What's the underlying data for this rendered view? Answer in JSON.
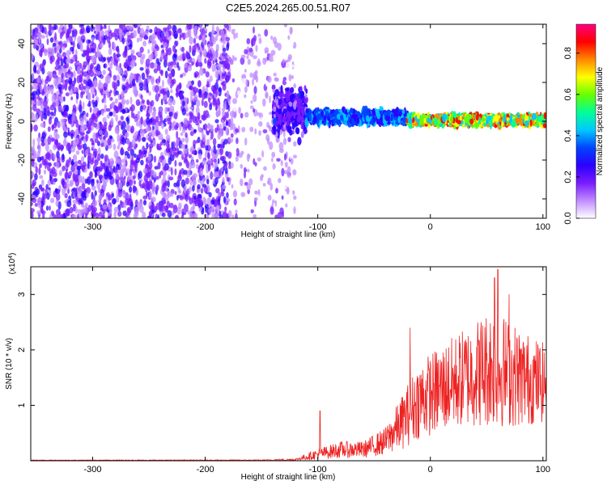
{
  "title": "C2E5.2024.265.00.51.R07",
  "chart_data": [
    {
      "type": "heatmap",
      "xlabel": "Height of straight line (km)",
      "ylabel": "Frequency (Hz)",
      "xlim": [
        -355,
        103
      ],
      "ylim": [
        -50,
        50
      ],
      "xticks": [
        -300,
        -200,
        -100,
        0,
        100
      ],
      "yticks": [
        -40,
        -20,
        0,
        20,
        40
      ],
      "colorbar": {
        "label": "Normalized spectral amplitude",
        "range": [
          0.0,
          0.94
        ],
        "ticks": [
          "0.0",
          "0.2",
          "0.4",
          "0.6",
          "0.8"
        ],
        "tick_values": [
          0.0,
          0.2,
          0.4,
          0.6,
          0.8
        ],
        "colors": [
          "#ffffff",
          "#c08cff",
          "#7a1cff",
          "#2b00ff",
          "#0044ff",
          "#00c8ff",
          "#00ff99",
          "#66ff00",
          "#ffff00",
          "#ff8800",
          "#ff0000",
          "#ff0080"
        ]
      },
      "regions": [
        {
          "x": [
            -355,
            -178
          ],
          "freq_range": [
            -50,
            50
          ],
          "amplitude": "0.05-0.25 (noise)"
        },
        {
          "x": [
            -178,
            -120
          ],
          "freq_range": [
            -50,
            50
          ],
          "amplitude": "0.02-0.15 (sparse noise)"
        },
        {
          "x": [
            -140,
            -110
          ],
          "freq_center": 5,
          "freq_halfwidth": 15,
          "amplitude": "0.1-0.3"
        },
        {
          "x": [
            -110,
            -20
          ],
          "freq_center": 2,
          "freq_halfwidth": 4,
          "amplitude": "0.25-0.45"
        },
        {
          "x": [
            -20,
            103
          ],
          "freq_center": 0.5,
          "freq_halfwidth": 3,
          "amplitude": "0.4-0.9"
        }
      ]
    },
    {
      "type": "line",
      "xlabel": "Height of straight line (km)",
      "ylabel": "SNR (10 * v/v)",
      "y_multiplier": "(x10",
      "y_multiplier_exp": "4",
      "y_multiplier_close": ")",
      "xlim": [
        -355,
        103
      ],
      "ylim": [
        0,
        3.5
      ],
      "xticks": [
        -300,
        -200,
        -100,
        0,
        100
      ],
      "yticks": [
        1,
        2,
        3
      ],
      "series": [
        {
          "color": "#ee2222",
          "envelope": [
            {
              "x": -355,
              "mean": 0.01,
              "spread": 0.005
            },
            {
              "x": -150,
              "mean": 0.01,
              "spread": 0.008
            },
            {
              "x": -120,
              "mean": 0.02,
              "spread": 0.02
            },
            {
              "x": -100,
              "mean": 0.12,
              "spread": 0.1
            },
            {
              "x": -80,
              "mean": 0.2,
              "spread": 0.15
            },
            {
              "x": -60,
              "mean": 0.2,
              "spread": 0.15
            },
            {
              "x": -40,
              "mean": 0.35,
              "spread": 0.25
            },
            {
              "x": -25,
              "mean": 0.7,
              "spread": 0.5
            },
            {
              "x": -10,
              "mean": 1.1,
              "spread": 0.7
            },
            {
              "x": 10,
              "mean": 1.3,
              "spread": 0.8
            },
            {
              "x": 30,
              "mean": 1.5,
              "spread": 0.9
            },
            {
              "x": 55,
              "mean": 1.7,
              "spread": 1.1
            },
            {
              "x": 80,
              "mean": 1.5,
              "spread": 0.9
            },
            {
              "x": 103,
              "mean": 1.4,
              "spread": 0.7
            }
          ],
          "peaks": [
            {
              "x": -98,
              "value": 0.9
            },
            {
              "x": -18,
              "value": 2.4
            },
            {
              "x": 57,
              "value": 3.3
            },
            {
              "x": 60,
              "value": 3.45
            },
            {
              "x": 70,
              "value": 3.0
            }
          ]
        }
      ]
    }
  ]
}
